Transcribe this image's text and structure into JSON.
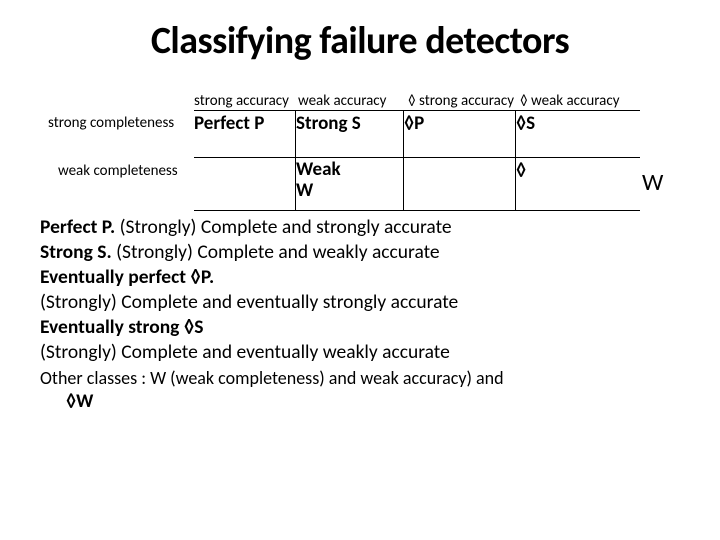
{
  "title": "Classifying failure detectors",
  "colors": {
    "bg": "#ffffff",
    "text": "#000000",
    "border": "#000000"
  },
  "fonts": {
    "title_size": 38,
    "body_size": 19.5,
    "header_size": 15,
    "cell_size": 19
  },
  "table": {
    "col_headers": [
      "strong accuracy",
      "weak accuracy",
      "◊ strong accuracy",
      "◊ weak accuracy"
    ],
    "row_headers": [
      "strong completeness",
      "weak completeness"
    ],
    "rows": [
      {
        "c1": "Perfect P",
        "c2": "Strong S",
        "c3": "◊P",
        "c4": "◊S"
      },
      {
        "c1": "",
        "c2": "Weak W",
        "c3": "",
        "c4": "◊"
      }
    ],
    "overflow_w": "W"
  },
  "body": {
    "l1a": "Perfect P.",
    "l1b": " (Strongly) Complete and strongly accurate",
    "l2a": "Strong S.",
    "l2b": " (Strongly) Complete and weakly accurate",
    "l3a": "Eventually perfect ◊P.",
    "l4": "(Strongly) Complete and eventually strongly accurate",
    "l5a": "Eventually strong ◊S",
    "l6": "(Strongly) Complete and eventually weakly accurate",
    "other": "Other classes : W (weak completeness) and weak accuracy) and",
    "dw": "◊W"
  }
}
